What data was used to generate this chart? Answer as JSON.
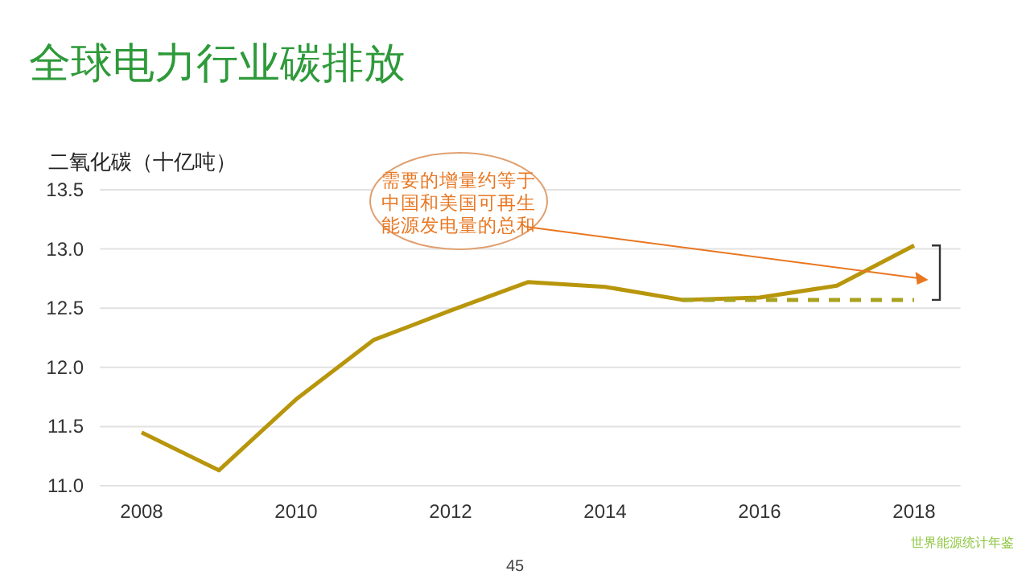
{
  "chart_data": {
    "type": "line",
    "title": "全球电力行业碳排放",
    "ylabel": "二氧化碳（十亿吨）",
    "x": [
      2008,
      2009,
      2010,
      2011,
      2012,
      2013,
      2014,
      2015,
      2016,
      2017,
      2018
    ],
    "series": [
      {
        "color": "#b8960c",
        "values": [
          11.45,
          11.13,
          11.73,
          12.23,
          12.48,
          12.72,
          12.68,
          12.57,
          12.59,
          12.69,
          13.03
        ]
      },
      {
        "color": "#a8a21e",
        "x": [
          2015,
          2018
        ],
        "values": [
          12.57,
          12.57
        ],
        "line_style": "dashed"
      }
    ],
    "xlim": [
      2007.5,
      2018.6
    ],
    "xticks": [
      2008,
      2010,
      2012,
      2014,
      2016,
      2018
    ],
    "ylim": [
      11.0,
      13.5
    ],
    "yticks": [
      {
        "value": 11,
        "label": "11.0"
      },
      11.5,
      {
        "value": 12,
        "label": "12.0"
      },
      12.5,
      {
        "value": 13,
        "label": "13.0"
      },
      13.5
    ],
    "grid": "y",
    "marker": "none",
    "line_style": "solid",
    "annotations": [
      "需要的增量约等于中国和美国可再生能源发电量的总和",
      "世界能源统计年鉴",
      "45"
    ]
  }
}
